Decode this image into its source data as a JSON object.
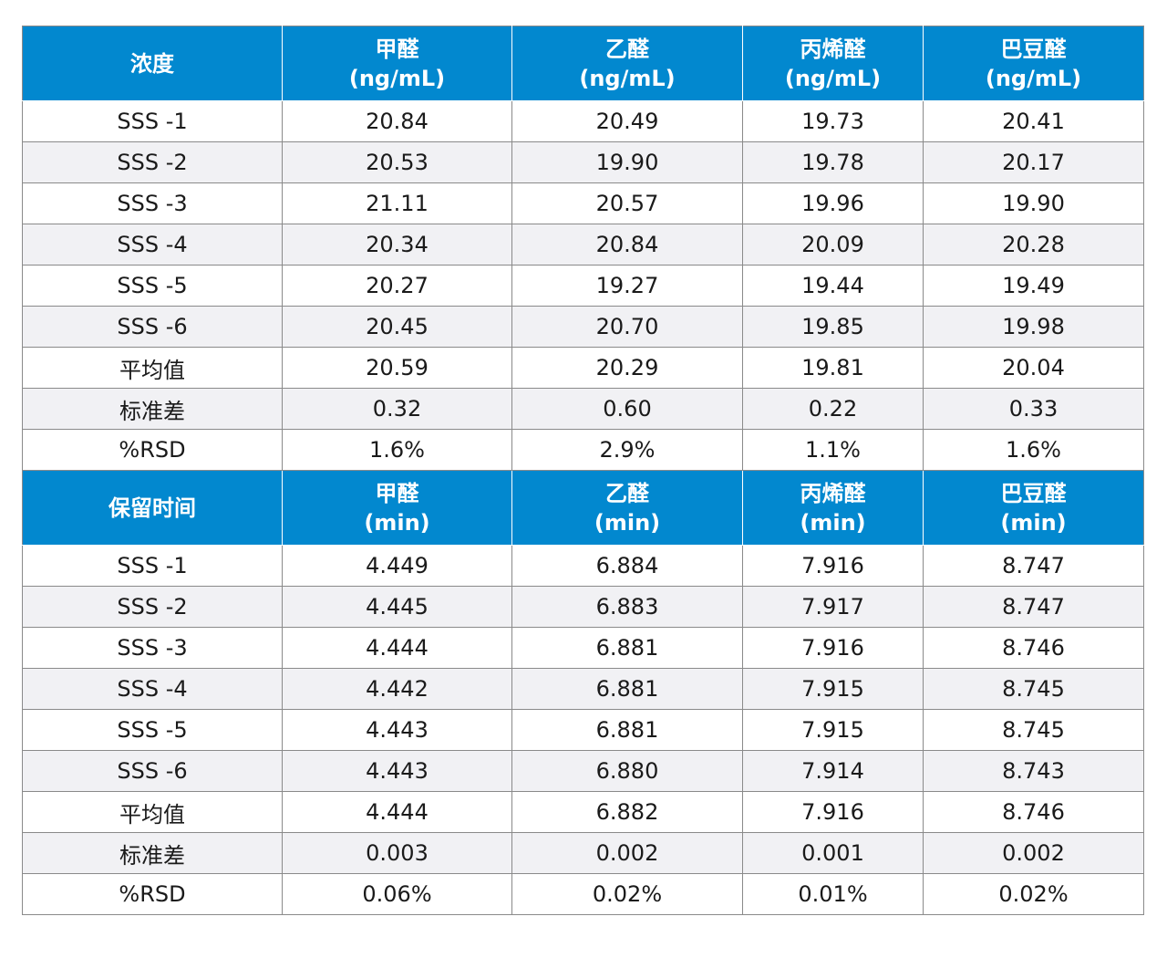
{
  "sections": [
    {
      "header": [
        {
          "line1": "浓度",
          "line2": ""
        },
        {
          "line1": "甲醛",
          "line2": "(ng/mL)"
        },
        {
          "line1": "乙醛",
          "line2": "(ng/mL)"
        },
        {
          "line1": "丙烯醛",
          "line2": "(ng/mL)"
        },
        {
          "line1": "巴豆醛",
          "line2": "(ng/mL)"
        }
      ],
      "rows": [
        [
          "SSS -1",
          "20.84",
          "20.49",
          "19.73",
          "20.41"
        ],
        [
          "SSS -2",
          "20.53",
          "19.90",
          "19.78",
          "20.17"
        ],
        [
          "SSS -3",
          "21.11",
          "20.57",
          "19.96",
          "19.90"
        ],
        [
          "SSS -4",
          "20.34",
          "20.84",
          "20.09",
          "20.28"
        ],
        [
          "SSS -5",
          "20.27",
          "19.27",
          "19.44",
          "19.49"
        ],
        [
          "SSS -6",
          "20.45",
          "20.70",
          "19.85",
          "19.98"
        ],
        [
          "平均值",
          "20.59",
          "20.29",
          "19.81",
          "20.04"
        ],
        [
          "标准差",
          "0.32",
          "0.60",
          "0.22",
          "0.33"
        ],
        [
          "%RSD",
          "1.6%",
          "2.9%",
          "1.1%",
          "1.6%"
        ]
      ]
    },
    {
      "header": [
        {
          "line1": "保留时间",
          "line2": ""
        },
        {
          "line1": "甲醛",
          "line2": "(min)"
        },
        {
          "line1": "乙醛",
          "line2": "(min)"
        },
        {
          "line1": "丙烯醛",
          "line2": "(min)"
        },
        {
          "line1": "巴豆醛",
          "line2": "(min)"
        }
      ],
      "rows": [
        [
          "SSS -1",
          "4.449",
          "6.884",
          "7.916",
          "8.747"
        ],
        [
          "SSS -2",
          "4.445",
          "6.883",
          "7.917",
          "8.747"
        ],
        [
          "SSS -3",
          "4.444",
          "6.881",
          "7.916",
          "8.746"
        ],
        [
          "SSS -4",
          "4.442",
          "6.881",
          "7.915",
          "8.745"
        ],
        [
          "SSS -5",
          "4.443",
          "6.881",
          "7.915",
          "8.745"
        ],
        [
          "SSS -6",
          "4.443",
          "6.880",
          "7.914",
          "8.743"
        ],
        [
          "平均值",
          "4.444",
          "6.882",
          "7.916",
          "8.746"
        ],
        [
          "标准差",
          "0.003",
          "0.002",
          "0.001",
          "0.002"
        ],
        [
          "%RSD",
          "0.06%",
          "0.02%",
          "0.01%",
          "0.02%"
        ]
      ]
    }
  ],
  "colors": {
    "header_bg": "#0288cf",
    "header_text": "#ffffff",
    "stripe_bg": "#f1f1f4",
    "border": "#8a8a8a"
  }
}
